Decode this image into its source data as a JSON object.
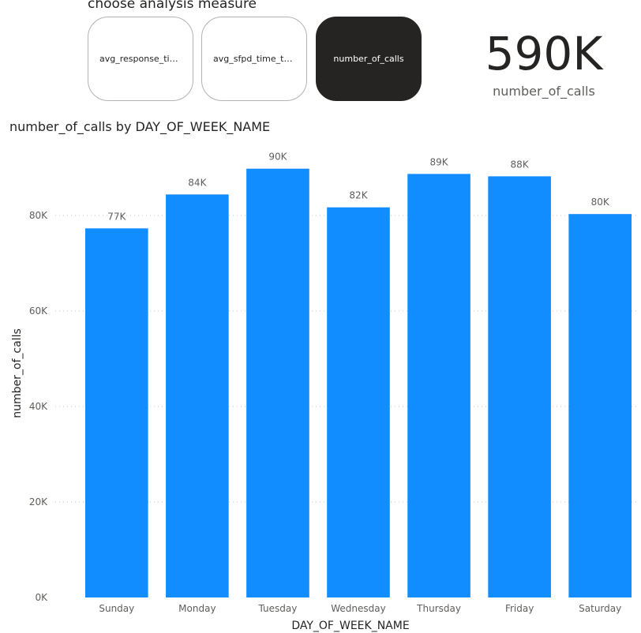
{
  "slicer": {
    "title": "choose analysis measure",
    "buttons": [
      {
        "label": "avg_response_time",
        "selected": false
      },
      {
        "label": "avg_sfpd_time_to_scene",
        "selected": false
      },
      {
        "label": "number_of_calls",
        "selected": true
      }
    ]
  },
  "kpi": {
    "value": "590K",
    "label": "number_of_calls"
  },
  "colors": {
    "bar": "#118dff",
    "selected_button": "#252423",
    "text": "#252423",
    "axis_text": "#605e5c",
    "gridline": "#c8c6c4"
  },
  "chart_data": {
    "type": "bar",
    "title": "number_of_calls by DAY_OF_WEEK_NAME",
    "xlabel": "DAY_OF_WEEK_NAME",
    "ylabel": "number_of_calls",
    "categories": [
      "Sunday",
      "Monday",
      "Tuesday",
      "Wednesday",
      "Thursday",
      "Friday",
      "Saturday"
    ],
    "values": [
      77300,
      84400,
      89800,
      81700,
      88700,
      88200,
      80300
    ],
    "data_labels": [
      "77K",
      "84K",
      "90K",
      "82K",
      "89K",
      "88K",
      "80K"
    ],
    "ylim": [
      0,
      95000
    ],
    "yticks": [
      0,
      20000,
      40000,
      60000,
      80000
    ],
    "ytick_labels": [
      "0K",
      "20K",
      "40K",
      "60K",
      "80K"
    ],
    "grid": true,
    "gridline_style": "dotted",
    "legend": "none"
  }
}
